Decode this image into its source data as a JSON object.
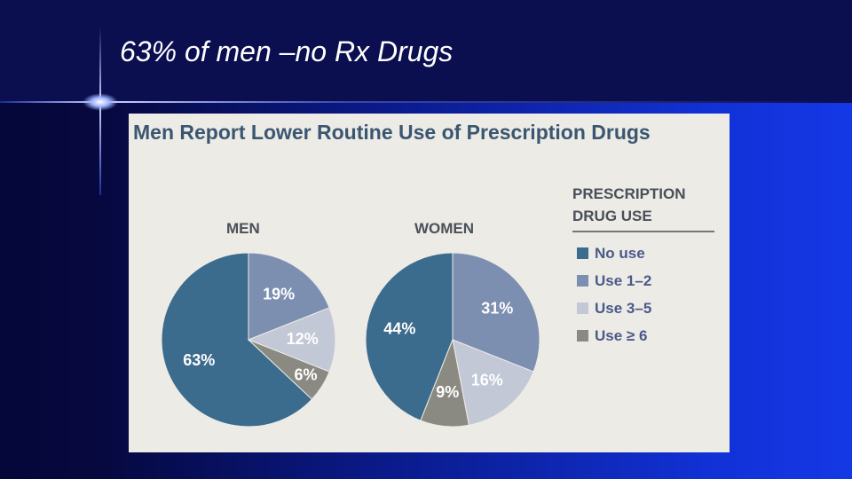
{
  "slide_title": "63% of men –no Rx Drugs",
  "figure_title": "Men Report Lower Routine Use of Prescription Drugs",
  "chart_data": [
    {
      "type": "pie",
      "title": "MEN",
      "legend_title": "PRESCRIPTION DRUG USE",
      "categories": [
        "No use",
        "Use 1–2",
        "Use 3–5",
        "Use ≥ 6"
      ],
      "values": [
        63,
        19,
        12,
        6
      ],
      "value_labels": [
        "63%",
        "19%",
        "12%",
        "6%"
      ],
      "colors": [
        "#3b6b8d",
        "#7c8fb1",
        "#c3c8d6",
        "#8b8a82"
      ]
    },
    {
      "type": "pie",
      "title": "WOMEN",
      "categories": [
        "No use",
        "Use 1–2",
        "Use 3–5",
        "Use ≥ 6"
      ],
      "values": [
        44,
        31,
        16,
        9
      ],
      "value_labels": [
        "44%",
        "31%",
        "16%",
        "9%"
      ],
      "colors": [
        "#3b6b8d",
        "#7c8fb1",
        "#c3c8d6",
        "#8b8a82"
      ]
    }
  ]
}
